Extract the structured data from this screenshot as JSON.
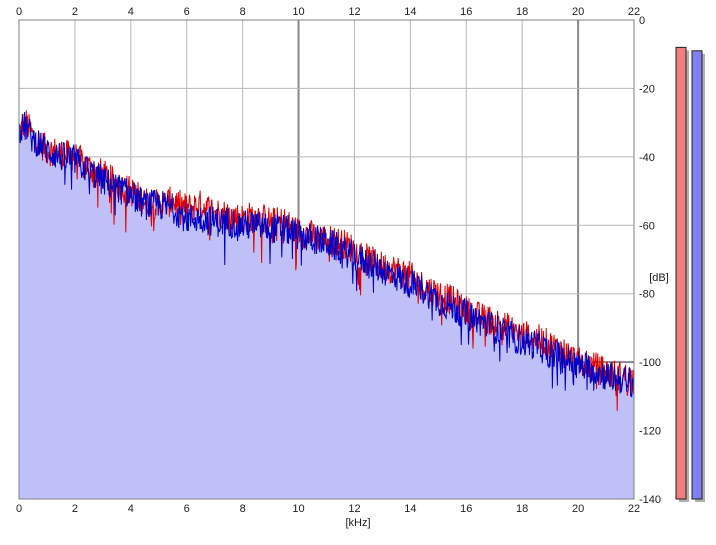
{
  "chart_data": {
    "type": "area",
    "xlabel": "[kHz]",
    "ylabel": "[dB]",
    "xlim": [
      0,
      22
    ],
    "ylim": [
      -140,
      0
    ],
    "x_ticks": [
      "0",
      "2",
      "4",
      "6",
      "8",
      "10",
      "12",
      "14",
      "16",
      "18",
      "20",
      "22"
    ],
    "y_ticks": [
      "0",
      "-20",
      "-40",
      "-60",
      "-80",
      "-100",
      "-120",
      "-140"
    ],
    "grid": true,
    "fill_color": "#c0c0f8",
    "series": [
      {
        "color": "#e00000",
        "x": [
          0,
          0.25,
          0.5,
          0.75,
          1,
          1.5,
          2,
          2.5,
          3,
          3.5,
          4,
          4.5,
          5,
          5.5,
          6,
          6.5,
          7,
          7.5,
          8,
          8.5,
          9,
          9.5,
          10,
          10.5,
          11,
          11.5,
          12,
          12.5,
          13,
          13.5,
          14,
          14.5,
          15,
          15.5,
          16,
          16.5,
          17,
          17.5,
          18,
          18.5,
          19,
          19.5,
          20,
          20.5,
          21,
          21.5,
          22
        ],
        "y": [
          -33,
          -30,
          -34,
          -36,
          -38,
          -39,
          -40,
          -43,
          -45,
          -48,
          -50,
          -53,
          -54,
          -53,
          -55,
          -54,
          -56,
          -57,
          -58,
          -57,
          -59,
          -59,
          -62,
          -63,
          -64,
          -65,
          -67,
          -70,
          -72,
          -73,
          -75,
          -78,
          -80,
          -82,
          -85,
          -87,
          -88,
          -90,
          -92,
          -93,
          -95,
          -97,
          -100,
          -101,
          -103,
          -104,
          -105
        ]
      },
      {
        "color": "#0000c8",
        "x": [
          0,
          0.25,
          0.5,
          0.75,
          1,
          1.5,
          2,
          2.5,
          3,
          3.5,
          4,
          4.5,
          5,
          5.5,
          6,
          6.5,
          7,
          7.5,
          8,
          8.5,
          9,
          9.5,
          10,
          10.5,
          11,
          11.5,
          12,
          12.5,
          13,
          13.5,
          14,
          14.5,
          15,
          15.5,
          16,
          16.5,
          17,
          17.5,
          18,
          18.5,
          19,
          19.5,
          20,
          20.5,
          21,
          21.5,
          22
        ],
        "y": [
          -32,
          -31,
          -35,
          -36,
          -38,
          -40,
          -41,
          -44,
          -47,
          -49,
          -51,
          -54,
          -54,
          -55,
          -58,
          -58,
          -59,
          -59,
          -60,
          -60,
          -61,
          -61,
          -63,
          -64,
          -65,
          -67,
          -69,
          -71,
          -73,
          -75,
          -77,
          -79,
          -82,
          -84,
          -86,
          -88,
          -90,
          -92,
          -94,
          -95,
          -97,
          -99,
          -101,
          -102,
          -104,
          -105,
          -106
        ]
      }
    ],
    "level_meters": [
      {
        "color": "#f08080",
        "value": -8
      },
      {
        "color": "#8080f0",
        "value": -9
      }
    ]
  }
}
